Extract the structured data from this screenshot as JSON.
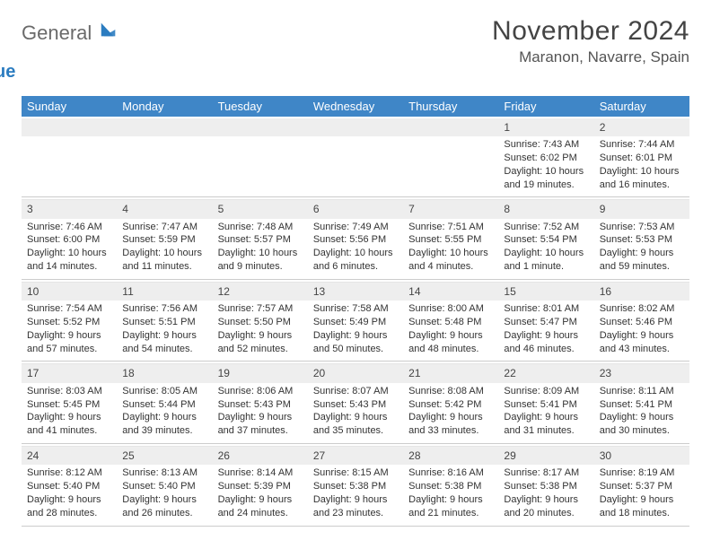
{
  "brand": {
    "word1": "General",
    "word2": "Blue",
    "logo_fill": "#2b7cc0"
  },
  "title": "November 2024",
  "location": "Maranon, Navarre, Spain",
  "colors": {
    "header_bg": "#3f86c7",
    "header_text": "#ffffff",
    "daynum_bg": "#eeeeee",
    "border": "#cccccc",
    "text": "#333333"
  },
  "day_names": [
    "Sunday",
    "Monday",
    "Tuesday",
    "Wednesday",
    "Thursday",
    "Friday",
    "Saturday"
  ],
  "weeks": [
    [
      null,
      null,
      null,
      null,
      null,
      {
        "n": "1",
        "sr": "Sunrise: 7:43 AM",
        "ss": "Sunset: 6:02 PM",
        "dl": "Daylight: 10 hours and 19 minutes."
      },
      {
        "n": "2",
        "sr": "Sunrise: 7:44 AM",
        "ss": "Sunset: 6:01 PM",
        "dl": "Daylight: 10 hours and 16 minutes."
      }
    ],
    [
      {
        "n": "3",
        "sr": "Sunrise: 7:46 AM",
        "ss": "Sunset: 6:00 PM",
        "dl": "Daylight: 10 hours and 14 minutes."
      },
      {
        "n": "4",
        "sr": "Sunrise: 7:47 AM",
        "ss": "Sunset: 5:59 PM",
        "dl": "Daylight: 10 hours and 11 minutes."
      },
      {
        "n": "5",
        "sr": "Sunrise: 7:48 AM",
        "ss": "Sunset: 5:57 PM",
        "dl": "Daylight: 10 hours and 9 minutes."
      },
      {
        "n": "6",
        "sr": "Sunrise: 7:49 AM",
        "ss": "Sunset: 5:56 PM",
        "dl": "Daylight: 10 hours and 6 minutes."
      },
      {
        "n": "7",
        "sr": "Sunrise: 7:51 AM",
        "ss": "Sunset: 5:55 PM",
        "dl": "Daylight: 10 hours and 4 minutes."
      },
      {
        "n": "8",
        "sr": "Sunrise: 7:52 AM",
        "ss": "Sunset: 5:54 PM",
        "dl": "Daylight: 10 hours and 1 minute."
      },
      {
        "n": "9",
        "sr": "Sunrise: 7:53 AM",
        "ss": "Sunset: 5:53 PM",
        "dl": "Daylight: 9 hours and 59 minutes."
      }
    ],
    [
      {
        "n": "10",
        "sr": "Sunrise: 7:54 AM",
        "ss": "Sunset: 5:52 PM",
        "dl": "Daylight: 9 hours and 57 minutes."
      },
      {
        "n": "11",
        "sr": "Sunrise: 7:56 AM",
        "ss": "Sunset: 5:51 PM",
        "dl": "Daylight: 9 hours and 54 minutes."
      },
      {
        "n": "12",
        "sr": "Sunrise: 7:57 AM",
        "ss": "Sunset: 5:50 PM",
        "dl": "Daylight: 9 hours and 52 minutes."
      },
      {
        "n": "13",
        "sr": "Sunrise: 7:58 AM",
        "ss": "Sunset: 5:49 PM",
        "dl": "Daylight: 9 hours and 50 minutes."
      },
      {
        "n": "14",
        "sr": "Sunrise: 8:00 AM",
        "ss": "Sunset: 5:48 PM",
        "dl": "Daylight: 9 hours and 48 minutes."
      },
      {
        "n": "15",
        "sr": "Sunrise: 8:01 AM",
        "ss": "Sunset: 5:47 PM",
        "dl": "Daylight: 9 hours and 46 minutes."
      },
      {
        "n": "16",
        "sr": "Sunrise: 8:02 AM",
        "ss": "Sunset: 5:46 PM",
        "dl": "Daylight: 9 hours and 43 minutes."
      }
    ],
    [
      {
        "n": "17",
        "sr": "Sunrise: 8:03 AM",
        "ss": "Sunset: 5:45 PM",
        "dl": "Daylight: 9 hours and 41 minutes."
      },
      {
        "n": "18",
        "sr": "Sunrise: 8:05 AM",
        "ss": "Sunset: 5:44 PM",
        "dl": "Daylight: 9 hours and 39 minutes."
      },
      {
        "n": "19",
        "sr": "Sunrise: 8:06 AM",
        "ss": "Sunset: 5:43 PM",
        "dl": "Daylight: 9 hours and 37 minutes."
      },
      {
        "n": "20",
        "sr": "Sunrise: 8:07 AM",
        "ss": "Sunset: 5:43 PM",
        "dl": "Daylight: 9 hours and 35 minutes."
      },
      {
        "n": "21",
        "sr": "Sunrise: 8:08 AM",
        "ss": "Sunset: 5:42 PM",
        "dl": "Daylight: 9 hours and 33 minutes."
      },
      {
        "n": "22",
        "sr": "Sunrise: 8:09 AM",
        "ss": "Sunset: 5:41 PM",
        "dl": "Daylight: 9 hours and 31 minutes."
      },
      {
        "n": "23",
        "sr": "Sunrise: 8:11 AM",
        "ss": "Sunset: 5:41 PM",
        "dl": "Daylight: 9 hours and 30 minutes."
      }
    ],
    [
      {
        "n": "24",
        "sr": "Sunrise: 8:12 AM",
        "ss": "Sunset: 5:40 PM",
        "dl": "Daylight: 9 hours and 28 minutes."
      },
      {
        "n": "25",
        "sr": "Sunrise: 8:13 AM",
        "ss": "Sunset: 5:40 PM",
        "dl": "Daylight: 9 hours and 26 minutes."
      },
      {
        "n": "26",
        "sr": "Sunrise: 8:14 AM",
        "ss": "Sunset: 5:39 PM",
        "dl": "Daylight: 9 hours and 24 minutes."
      },
      {
        "n": "27",
        "sr": "Sunrise: 8:15 AM",
        "ss": "Sunset: 5:38 PM",
        "dl": "Daylight: 9 hours and 23 minutes."
      },
      {
        "n": "28",
        "sr": "Sunrise: 8:16 AM",
        "ss": "Sunset: 5:38 PM",
        "dl": "Daylight: 9 hours and 21 minutes."
      },
      {
        "n": "29",
        "sr": "Sunrise: 8:17 AM",
        "ss": "Sunset: 5:38 PM",
        "dl": "Daylight: 9 hours and 20 minutes."
      },
      {
        "n": "30",
        "sr": "Sunrise: 8:19 AM",
        "ss": "Sunset: 5:37 PM",
        "dl": "Daylight: 9 hours and 18 minutes."
      }
    ]
  ]
}
